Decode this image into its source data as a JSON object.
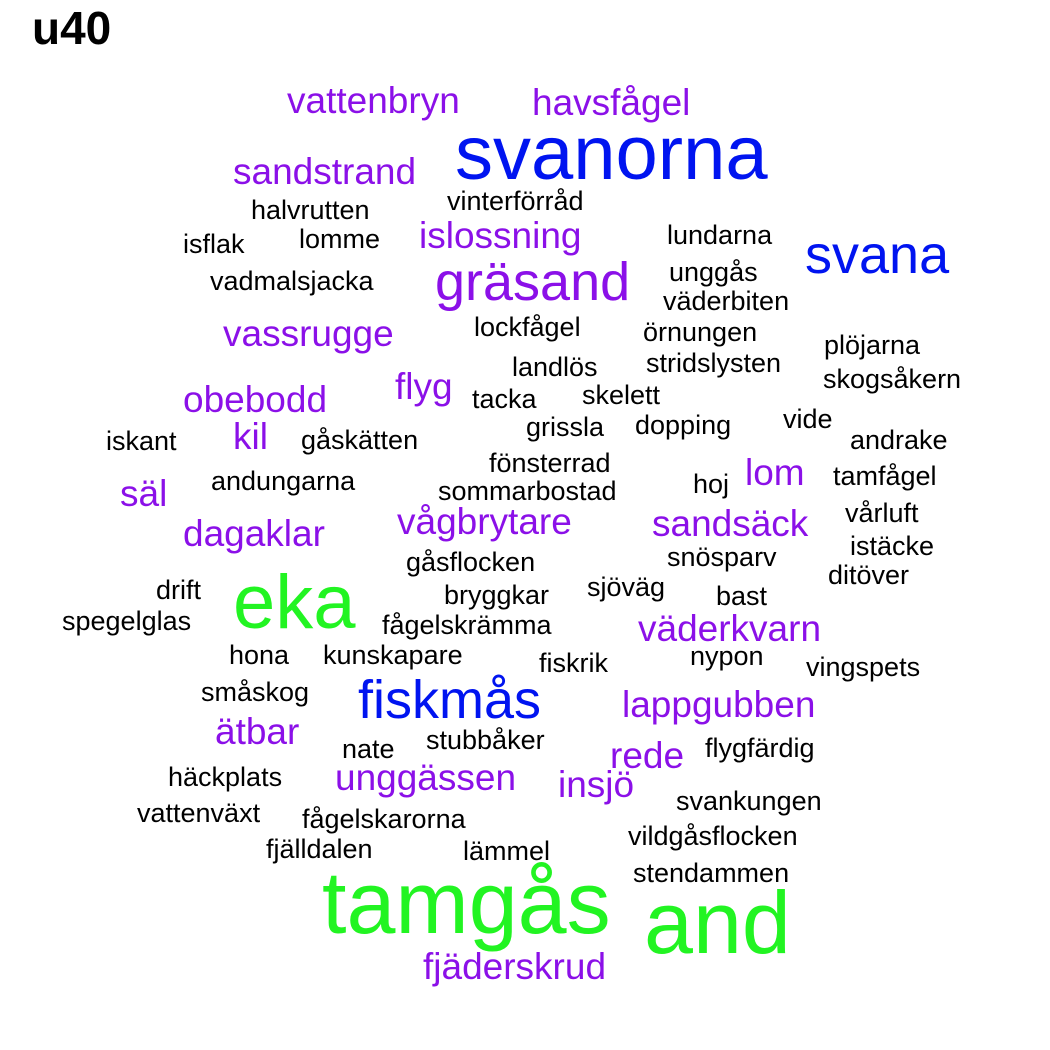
{
  "title": "u40",
  "colors": {
    "black": "#000000",
    "purple": "#8B10E8",
    "blue": "#0014F0",
    "green": "#22F422"
  },
  "words": [
    {
      "text": "vattenbryn",
      "color": "purple",
      "size": 2
    },
    {
      "text": "havsfågel",
      "color": "purple",
      "size": 2
    },
    {
      "text": "svanorna",
      "color": "blue",
      "size": 4
    },
    {
      "text": "sandstrand",
      "color": "purple",
      "size": 2
    },
    {
      "text": "vinterförråd",
      "color": "black",
      "size": 1
    },
    {
      "text": "halvrutten",
      "color": "black",
      "size": 1
    },
    {
      "text": "isflak",
      "color": "black",
      "size": 1
    },
    {
      "text": "lomme",
      "color": "black",
      "size": 1
    },
    {
      "text": "islossning",
      "color": "purple",
      "size": 2
    },
    {
      "text": "lundarna",
      "color": "black",
      "size": 1
    },
    {
      "text": "svana",
      "color": "blue",
      "size": 3
    },
    {
      "text": "unggås",
      "color": "black",
      "size": 1
    },
    {
      "text": "vadmalsjacka",
      "color": "black",
      "size": 1
    },
    {
      "text": "gräsand",
      "color": "purple",
      "size": 3
    },
    {
      "text": "väderbiten",
      "color": "black",
      "size": 1
    },
    {
      "text": "vassrugge",
      "color": "purple",
      "size": 2
    },
    {
      "text": "lockfågel",
      "color": "black",
      "size": 1
    },
    {
      "text": "örnungen",
      "color": "black",
      "size": 1
    },
    {
      "text": "plöjarna",
      "color": "black",
      "size": 1
    },
    {
      "text": "landlös",
      "color": "black",
      "size": 1
    },
    {
      "text": "stridslysten",
      "color": "black",
      "size": 1
    },
    {
      "text": "skogsåkern",
      "color": "black",
      "size": 1
    },
    {
      "text": "flyg",
      "color": "purple",
      "size": 2
    },
    {
      "text": "obebodd",
      "color": "purple",
      "size": 2
    },
    {
      "text": "tacka",
      "color": "black",
      "size": 1
    },
    {
      "text": "skelett",
      "color": "black",
      "size": 1
    },
    {
      "text": "vide",
      "color": "black",
      "size": 1
    },
    {
      "text": "iskant",
      "color": "black",
      "size": 1
    },
    {
      "text": "kil",
      "color": "purple",
      "size": 2
    },
    {
      "text": "gåskätten",
      "color": "black",
      "size": 1
    },
    {
      "text": "grissla",
      "color": "black",
      "size": 1
    },
    {
      "text": "dopping",
      "color": "black",
      "size": 1
    },
    {
      "text": "andrake",
      "color": "black",
      "size": 1
    },
    {
      "text": "fönsterrad",
      "color": "black",
      "size": 1
    },
    {
      "text": "lom",
      "color": "purple",
      "size": 2
    },
    {
      "text": "tamfågel",
      "color": "black",
      "size": 1
    },
    {
      "text": "säl",
      "color": "purple",
      "size": 2
    },
    {
      "text": "andungarna",
      "color": "black",
      "size": 1
    },
    {
      "text": "sommarbostad",
      "color": "black",
      "size": 1
    },
    {
      "text": "hoj",
      "color": "black",
      "size": 1
    },
    {
      "text": "vågbrytare",
      "color": "purple",
      "size": 2
    },
    {
      "text": "sandsäck",
      "color": "purple",
      "size": 2
    },
    {
      "text": "vårluft",
      "color": "black",
      "size": 1
    },
    {
      "text": "dagaklar",
      "color": "purple",
      "size": 2
    },
    {
      "text": "istäcke",
      "color": "black",
      "size": 1
    },
    {
      "text": "snösparv",
      "color": "black",
      "size": 1
    },
    {
      "text": "gåsflocken",
      "color": "black",
      "size": 1
    },
    {
      "text": "ditöver",
      "color": "black",
      "size": 1
    },
    {
      "text": "drift",
      "color": "black",
      "size": 1
    },
    {
      "text": "eka",
      "color": "green",
      "size": 4
    },
    {
      "text": "sjöväg",
      "color": "black",
      "size": 1
    },
    {
      "text": "bryggkar",
      "color": "black",
      "size": 1
    },
    {
      "text": "bast",
      "color": "black",
      "size": 1
    },
    {
      "text": "spegelglas",
      "color": "black",
      "size": 1
    },
    {
      "text": "fågelskrämma",
      "color": "black",
      "size": 1
    },
    {
      "text": "väderkvarn",
      "color": "purple",
      "size": 2
    },
    {
      "text": "hona",
      "color": "black",
      "size": 1
    },
    {
      "text": "kunskapare",
      "color": "black",
      "size": 1
    },
    {
      "text": "fiskrik",
      "color": "black",
      "size": 1
    },
    {
      "text": "nypon",
      "color": "black",
      "size": 1
    },
    {
      "text": "vingspets",
      "color": "black",
      "size": 1
    },
    {
      "text": "småskog",
      "color": "black",
      "size": 1
    },
    {
      "text": "fiskmås",
      "color": "blue",
      "size": 3
    },
    {
      "text": "lappgubben",
      "color": "purple",
      "size": 2
    },
    {
      "text": "ätbar",
      "color": "purple",
      "size": 2
    },
    {
      "text": "nate",
      "color": "black",
      "size": 1
    },
    {
      "text": "stubbåker",
      "color": "black",
      "size": 1
    },
    {
      "text": "rede",
      "color": "purple",
      "size": 2
    },
    {
      "text": "flygfärdig",
      "color": "black",
      "size": 1
    },
    {
      "text": "häckplats",
      "color": "black",
      "size": 1
    },
    {
      "text": "unggässen",
      "color": "purple",
      "size": 2
    },
    {
      "text": "insjö",
      "color": "purple",
      "size": 2
    },
    {
      "text": "svankungen",
      "color": "black",
      "size": 1
    },
    {
      "text": "vattenväxt",
      "color": "black",
      "size": 1
    },
    {
      "text": "fågelskarorna",
      "color": "black",
      "size": 1
    },
    {
      "text": "vildgåsflocken",
      "color": "black",
      "size": 1
    },
    {
      "text": "fjälldalen",
      "color": "black",
      "size": 1
    },
    {
      "text": "lämmel",
      "color": "black",
      "size": 1
    },
    {
      "text": "stendammen",
      "color": "black",
      "size": 1
    },
    {
      "text": "tamgås",
      "color": "green",
      "size": 5
    },
    {
      "text": "and",
      "color": "green",
      "size": 5
    },
    {
      "text": "fjäderskrud",
      "color": "purple",
      "size": 2
    }
  ]
}
